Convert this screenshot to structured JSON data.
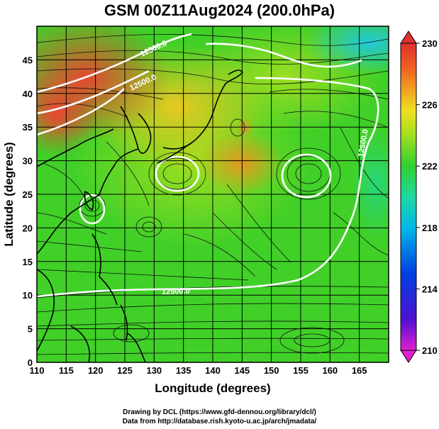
{
  "title": "GSM 00Z11Aug2024 (200.0hPa)",
  "xlabel": "Longitude (degrees)",
  "ylabel": "Latitude (degrees)",
  "credits": {
    "line1": "Drawing by DCL (https://www.gfd-dennou.org/library/dcl/)",
    "line2": "Data from http://database.rish.kyoto-u.ac.jp/arch/jmadata/"
  },
  "chart_data": {
    "type": "heatmap",
    "xlim": [
      110,
      170
    ],
    "ylim": [
      0,
      50
    ],
    "x_ticks": [
      110,
      115,
      120,
      125,
      130,
      135,
      140,
      145,
      150,
      155,
      160,
      165
    ],
    "y_ticks": [
      0,
      5,
      10,
      15,
      20,
      25,
      30,
      35,
      40,
      45
    ],
    "colorbar": {
      "ticks": [
        210,
        214,
        218,
        222,
        226,
        230
      ],
      "range": [
        210,
        230
      ],
      "colors": [
        "#e020d0",
        "#5010d0",
        "#0040e0",
        "#00b8e8",
        "#20d8a0",
        "#30d030",
        "#a0e020",
        "#f0e020",
        "#f0a020",
        "#f06020",
        "#e03030"
      ]
    },
    "contour_labels": [
      "12500.0",
      "12500.0",
      "12500.0",
      "12500.0"
    ],
    "grid": true,
    "overlay": "streamlines"
  }
}
